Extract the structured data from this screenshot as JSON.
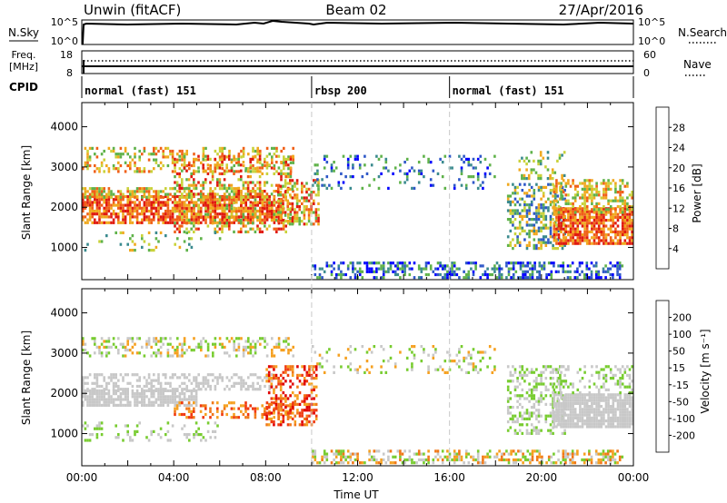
{
  "header": {
    "station": "Unwin (fitACF)",
    "beam": "Beam 02",
    "date": "27/Apr/2016"
  },
  "status_panels": {
    "nsky_label": "N.Sky",
    "nsearch_label": "N.Search",
    "freq_label": "Freq.",
    "freq_unit": "[MHz]",
    "nave_label": "Nave",
    "cpid_label": "CPID",
    "nsky_ticks": [
      "10^5",
      "10^0"
    ],
    "nsearch_ticks": [
      "10^5",
      "10^0"
    ],
    "freq_ticks": [
      "18",
      "8"
    ],
    "nave_ticks": [
      "60",
      "0"
    ]
  },
  "cpid": {
    "segments": [
      {
        "label": "normal (fast) 151",
        "start_hour": 0,
        "end_hour": 10
      },
      {
        "label": "rbsp 200",
        "start_hour": 10,
        "end_hour": 16
      },
      {
        "label": "normal (fast) 151",
        "start_hour": 16,
        "end_hour": 24
      }
    ]
  },
  "chart_data": [
    {
      "type": "heatmap",
      "name": "power",
      "xlabel": "",
      "ylabel": "Slant Range [km]",
      "xlim": [
        0,
        24
      ],
      "ylim": [
        200,
        4600
      ],
      "yticks": [
        "1000",
        "2000",
        "3000",
        "4000"
      ],
      "colorbar_label": "Power [dB]",
      "colorbar_ticks": [
        "4",
        "8",
        "12",
        "16",
        "20",
        "24",
        "28"
      ],
      "colorbar_colors": [
        "#0000ff",
        "#2e57c8",
        "#3a8a8e",
        "#5fb24a",
        "#c9d23a",
        "#f0a81e",
        "#f06018",
        "#e01a10"
      ]
    },
    {
      "type": "heatmap",
      "name": "velocity",
      "xlabel": "Time UT",
      "ylabel": "Slant Range [km]",
      "xlim": [
        0,
        24
      ],
      "ylim": [
        200,
        4600
      ],
      "yticks": [
        "1000",
        "2000",
        "3000",
        "4000"
      ],
      "xticks": [
        "00:00",
        "04:00",
        "08:00",
        "12:00",
        "16:00",
        "20:00",
        "00:00"
      ],
      "colorbar_label": "Velocity [m s⁻¹]",
      "colorbar_ticks": [
        "200",
        "100",
        "50",
        "15",
        "-15",
        "-50",
        "-100",
        "-200"
      ],
      "colorbar_colors": [
        "#1e3ccf",
        "#2e6e95",
        "#3e9a4e",
        "#78cc30",
        "#c8c8c8",
        "#f5a020",
        "#f07818",
        "#f03a10",
        "#e00000"
      ]
    }
  ]
}
